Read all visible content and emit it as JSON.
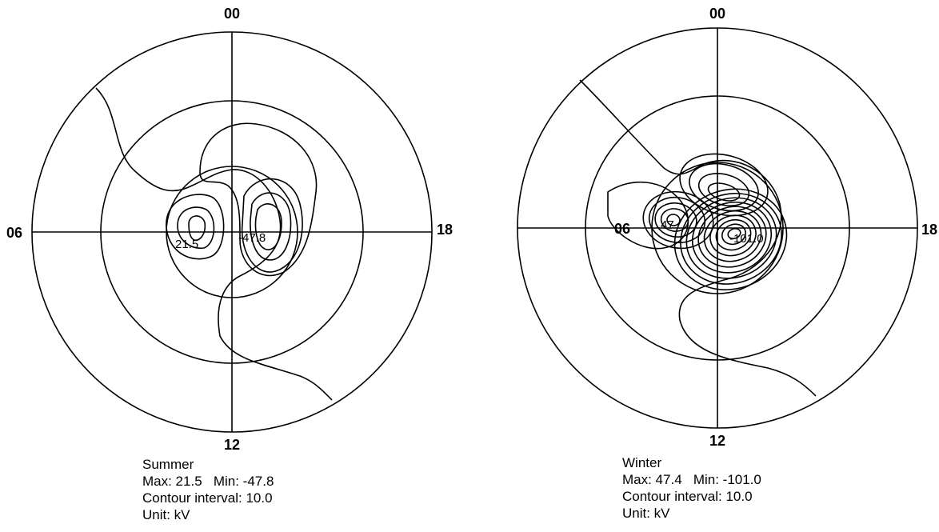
{
  "panels": [
    {
      "axis_labels": {
        "top": "00",
        "left": "06",
        "right": "18",
        "bottom": "12"
      },
      "contour_labels": [
        "21.5",
        "-47.8"
      ],
      "caption": {
        "season": "Summer",
        "extremes": "Max: 21.5   Min: -47.8",
        "interval": "Contour interval: 10.0",
        "unit": "Unit: kV"
      }
    },
    {
      "axis_labels": {
        "top": "00",
        "left": "06",
        "right": "18",
        "bottom": "12"
      },
      "contour_labels": [
        "47",
        "-101.0"
      ],
      "caption": {
        "season": "Winter",
        "extremes": "Max: 47.4   Min: -101.0",
        "interval": "Contour interval: 10.0",
        "unit": "Unit: kV"
      }
    }
  ]
}
